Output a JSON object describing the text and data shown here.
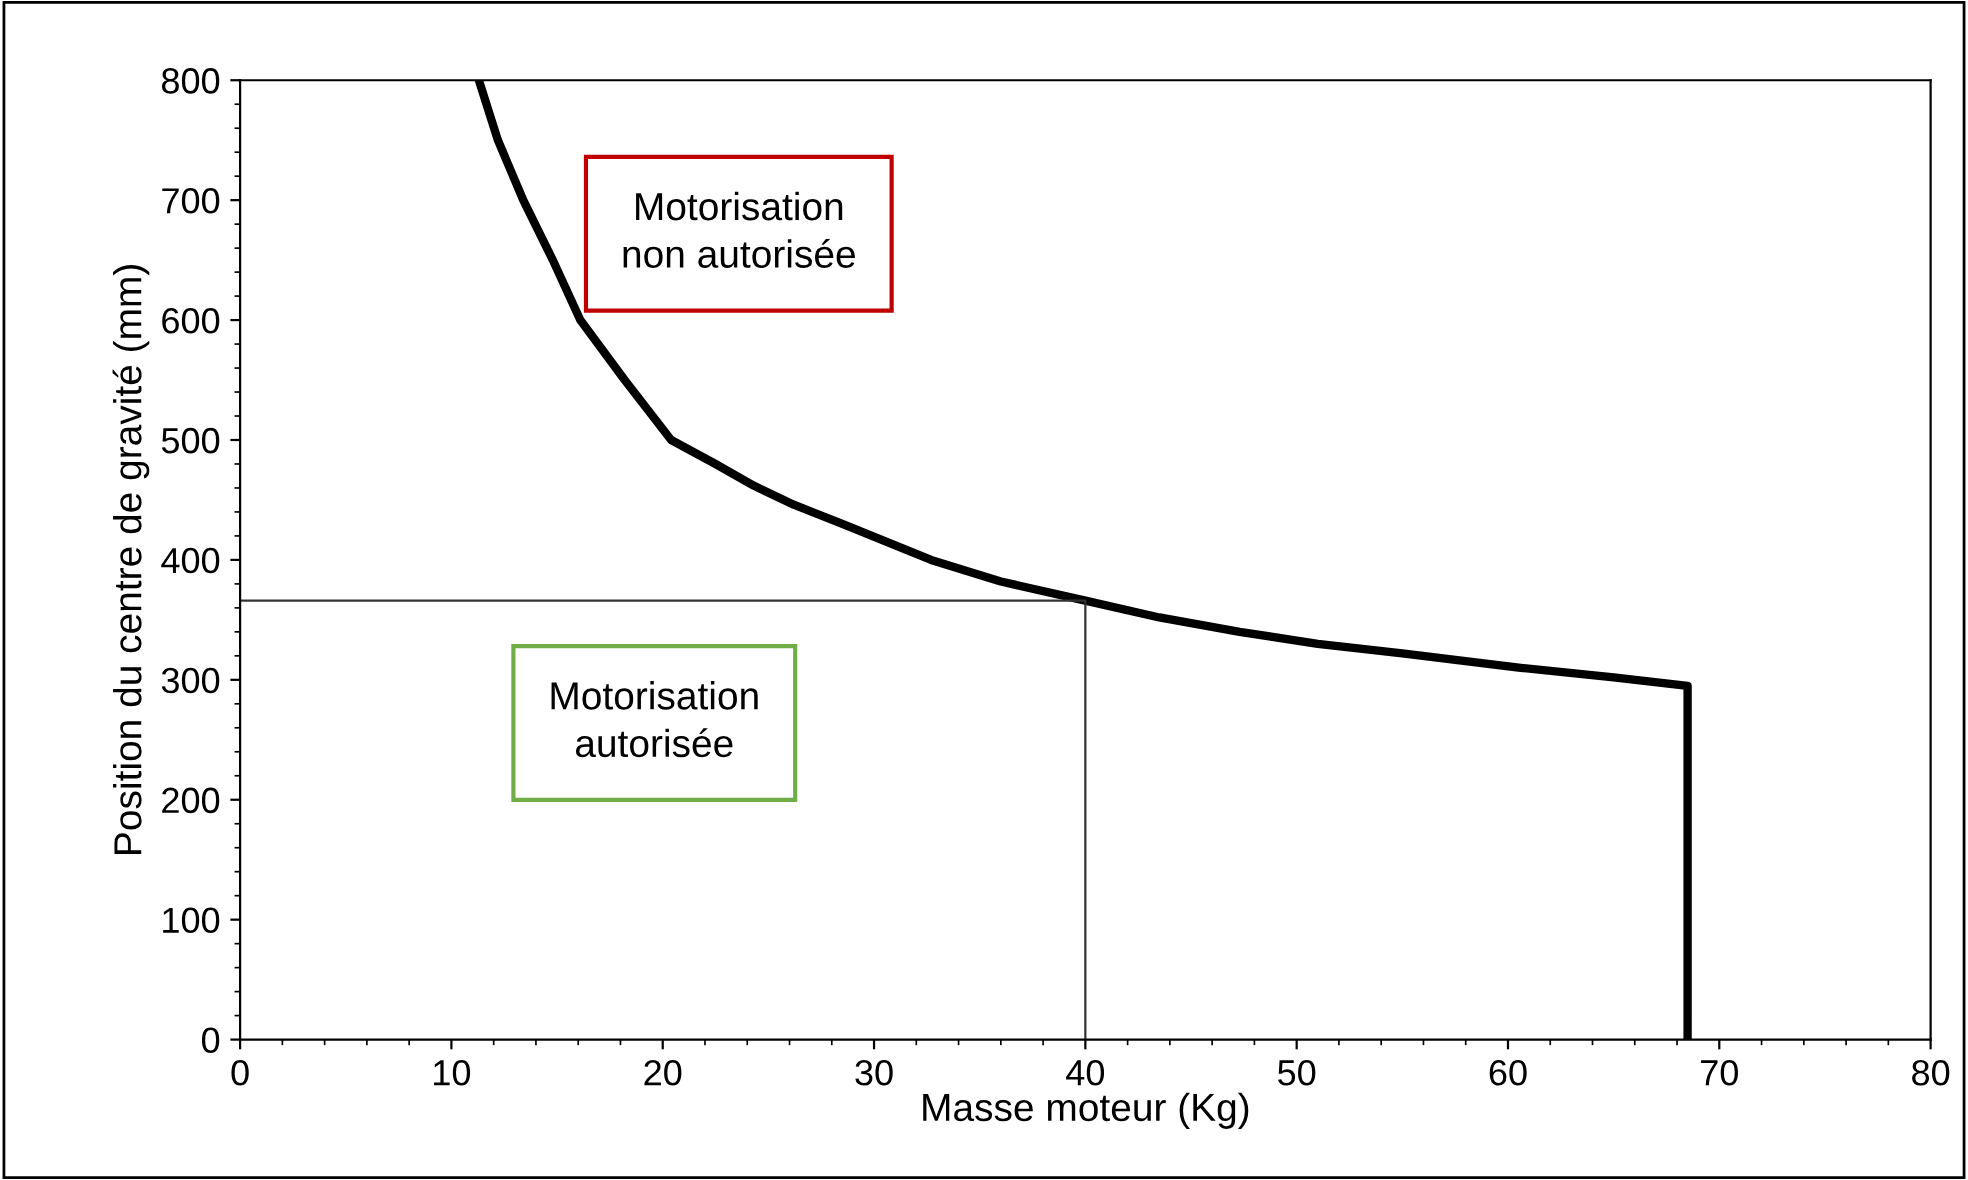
{
  "chart_data": {
    "type": "line",
    "xlabel": "Masse moteur (Kg)",
    "ylabel": "Position du centre de gravité (mm)",
    "series": [
      {
        "color": "#000000",
        "x": [
          11.3,
          12.2,
          13.4,
          14.8,
          16.1,
          18.2,
          20.4,
          22.5,
          24.3,
          26.2,
          28.5,
          32.7,
          36,
          40,
          43.5,
          47.3,
          51,
          55,
          60.6,
          65,
          68.5,
          68.5
        ],
        "values": [
          800,
          750,
          700,
          650,
          600,
          550,
          500,
          480,
          462,
          446,
          430,
          400,
          382,
          366,
          352,
          340,
          330,
          322,
          310,
          302,
          295,
          0
        ]
      },
      {
        "color": "#333333",
        "x": [
          0,
          40,
          40
        ],
        "values": [
          366,
          366,
          0
        ]
      }
    ],
    "xlim": [
      0,
      80
    ],
    "xticks": [
      0,
      10,
      20,
      30,
      40,
      50,
      60,
      70,
      80
    ],
    "ylim": [
      0,
      800
    ],
    "yticks": [
      0,
      100,
      200,
      300,
      400,
      500,
      600,
      700,
      800
    ],
    "grid": false,
    "legend": false,
    "annotations": [
      "Motorisation\nnon autorisée",
      "Motorisation\nautorisée"
    ]
  }
}
